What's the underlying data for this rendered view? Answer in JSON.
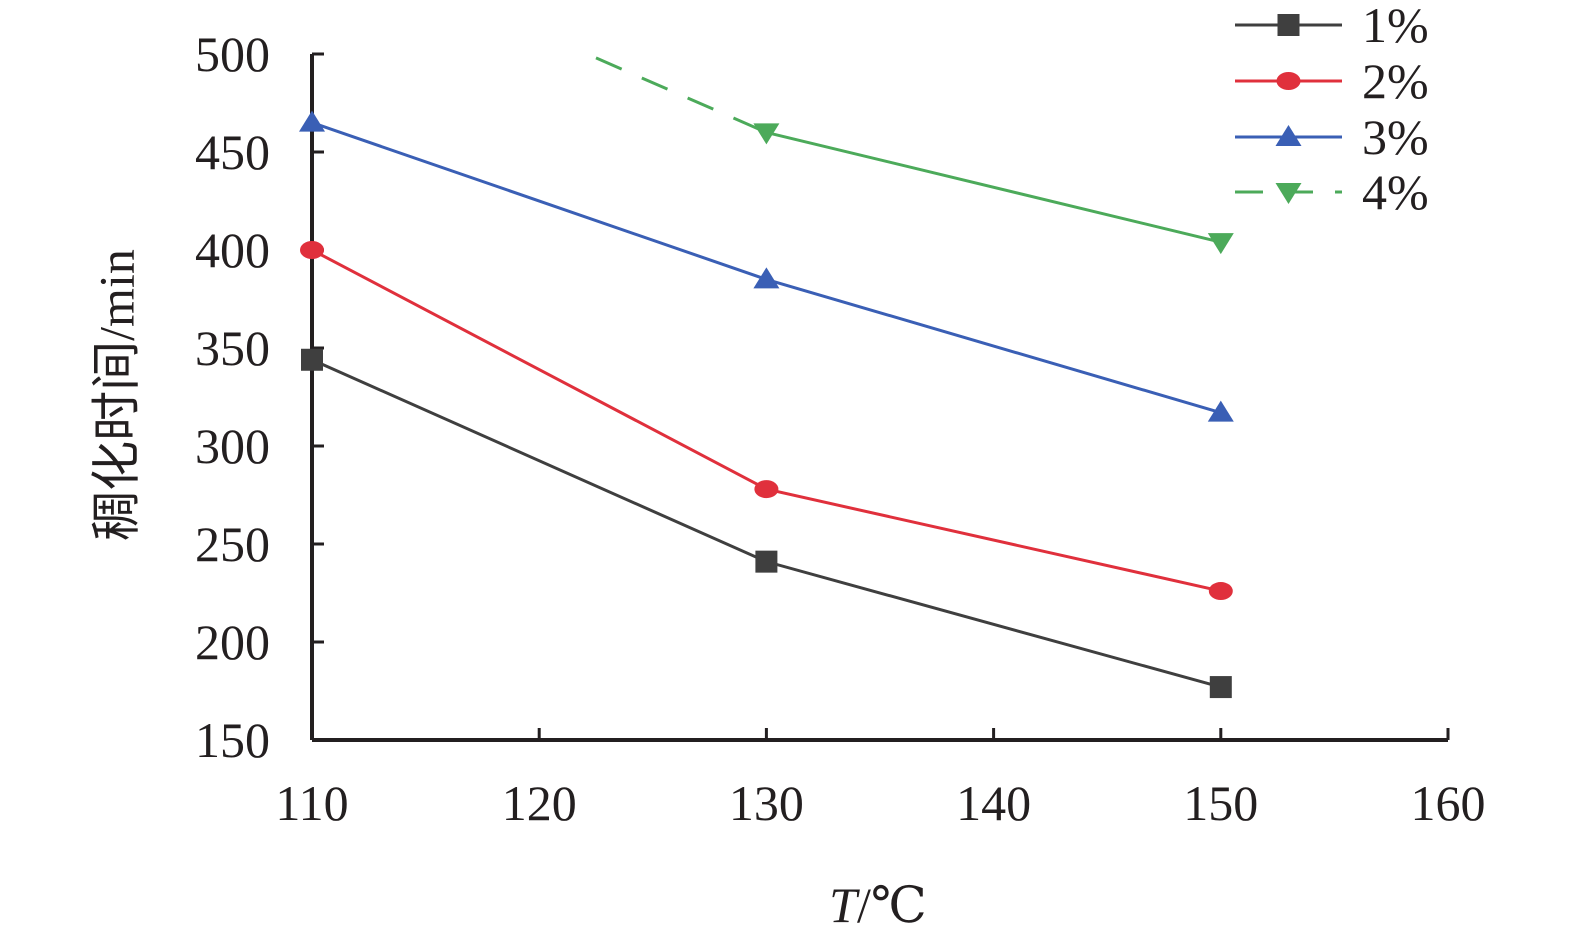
{
  "chart_data": {
    "type": "line",
    "xlabel_italic": "T",
    "xlabel_rest": "/℃",
    "ylabel": "稠化时间/min",
    "xlim": [
      110,
      160
    ],
    "ylim": [
      150,
      500
    ],
    "xticks": [
      "110",
      "120",
      "130",
      "140",
      "150",
      "160"
    ],
    "yticks": [
      "150",
      "200",
      "250",
      "300",
      "350",
      "400",
      "450",
      "500"
    ],
    "grid": false,
    "legend_position": "top-right",
    "series": [
      {
        "name": "1%",
        "color": "#3f3f3f",
        "marker": "square",
        "dash": "solid",
        "x": [
          110,
          130,
          150
        ],
        "y": [
          344,
          241,
          177
        ]
      },
      {
        "name": "2%",
        "color": "#e0303c",
        "marker": "circle",
        "dash": "solid",
        "x": [
          110,
          130,
          150
        ],
        "y": [
          400,
          278,
          226
        ]
      },
      {
        "name": "3%",
        "color": "#3a5fb5",
        "marker": "triangle-up",
        "dash": "solid",
        "x": [
          110,
          130,
          150
        ],
        "y": [
          465,
          385,
          317
        ]
      },
      {
        "name": "4%",
        "color": "#4caa5a",
        "marker": "triangle-down",
        "dash": "solid",
        "x": [
          130,
          150
        ],
        "y": [
          460,
          404
        ]
      }
    ]
  }
}
